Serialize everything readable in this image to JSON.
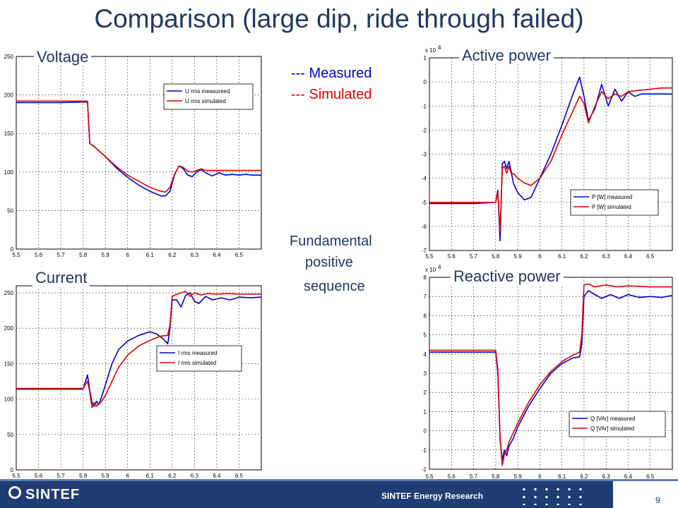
{
  "slide": {
    "title": "Comparison (large dip, ride through failed)",
    "legend_measured": "--- Measured",
    "legend_simulated": "--- Simulated",
    "note_line1": "Fundamental",
    "note_line2": "positive",
    "note_line3": "sequence",
    "footer_org": "SINTEF Energy Research",
    "logo_text": "SINTEF",
    "page_number": "9"
  },
  "colors": {
    "title": "#1f3864",
    "measured": "#0000cc",
    "simulated": "#dd0000",
    "footer": "#1f3c73"
  },
  "chart_data": [
    {
      "type": "line",
      "title": "Voltage",
      "xlim": [
        5.5,
        6.6
      ],
      "ylim": [
        0,
        250
      ],
      "xticks": [
        5.5,
        5.6,
        5.7,
        5.8,
        5.9,
        6,
        6.1,
        6.2,
        6.3,
        6.4,
        6.5
      ],
      "yticks": [
        0,
        50,
        100,
        150,
        200,
        250
      ],
      "ytick_labels": [
        "0",
        "50",
        "100",
        "150",
        "200",
        "250"
      ],
      "grid": true,
      "exponent_label": "",
      "legend": "upper-right",
      "series": [
        {
          "name": "U rms measureed",
          "color": "#0000cc",
          "x": [
            5.5,
            5.7,
            5.82,
            5.83,
            5.85,
            5.9,
            5.95,
            6.0,
            6.05,
            6.1,
            6.15,
            6.17,
            6.19,
            6.21,
            6.23,
            6.25,
            6.27,
            6.29,
            6.31,
            6.33,
            6.35,
            6.38,
            6.41,
            6.44,
            6.47,
            6.5,
            6.53,
            6.56,
            6.6
          ],
          "y": [
            190,
            190,
            191,
            137,
            133,
            120,
            105,
            93,
            83,
            75,
            69,
            69,
            75,
            96,
            108,
            104,
            96,
            94,
            100,
            103,
            99,
            95,
            99,
            96,
            97,
            96,
            97,
            96,
            96
          ]
        },
        {
          "name": "U rms simulated",
          "color": "#dd0000",
          "x": [
            5.5,
            5.7,
            5.82,
            5.83,
            5.85,
            5.9,
            5.95,
            6.0,
            6.05,
            6.1,
            6.15,
            6.17,
            6.19,
            6.21,
            6.23,
            6.25,
            6.27,
            6.29,
            6.31,
            6.33,
            6.35,
            6.38,
            6.45,
            6.5,
            6.6
          ],
          "y": [
            192,
            192,
            192,
            137,
            133,
            120,
            107,
            96,
            88,
            80,
            75,
            74,
            80,
            97,
            108,
            106,
            101,
            100,
            102,
            104,
            102,
            102,
            102,
            102,
            102
          ]
        }
      ]
    },
    {
      "type": "line",
      "title": "Current",
      "xlim": [
        5.5,
        6.6
      ],
      "ylim": [
        0,
        260
      ],
      "xticks": [
        5.5,
        5.6,
        5.7,
        5.8,
        5.9,
        6,
        6.1,
        6.2,
        6.3,
        6.4,
        6.5
      ],
      "yticks": [
        0,
        50,
        100,
        150,
        200,
        250
      ],
      "ytick_labels": [
        "0",
        "50",
        "100",
        "150",
        "200",
        "250"
      ],
      "grid": true,
      "exponent_label": "",
      "legend": "upper-right",
      "series": [
        {
          "name": "I rms measured",
          "color": "#0000cc",
          "x": [
            5.5,
            5.7,
            5.8,
            5.82,
            5.83,
            5.84,
            5.85,
            5.86,
            5.87,
            5.88,
            5.9,
            5.93,
            5.96,
            6.0,
            6.05,
            6.1,
            6.13,
            6.16,
            6.18,
            6.19,
            6.2,
            6.22,
            6.24,
            6.26,
            6.28,
            6.3,
            6.32,
            6.35,
            6.38,
            6.42,
            6.46,
            6.5,
            6.55,
            6.6
          ],
          "y": [
            114,
            114,
            114,
            134,
            112,
            95,
            90,
            97,
            92,
            100,
            120,
            150,
            170,
            182,
            190,
            195,
            192,
            185,
            178,
            200,
            240,
            240,
            230,
            246,
            250,
            238,
            235,
            245,
            240,
            243,
            240,
            244,
            243,
            244
          ]
        },
        {
          "name": "I rms simulated",
          "color": "#dd0000",
          "x": [
            5.5,
            5.7,
            5.8,
            5.82,
            5.83,
            5.84,
            5.85,
            5.86,
            5.87,
            5.88,
            5.9,
            5.93,
            5.96,
            6.0,
            6.05,
            6.1,
            6.15,
            6.18,
            6.19,
            6.2,
            6.22,
            6.24,
            6.26,
            6.28,
            6.3,
            6.33,
            6.36,
            6.4,
            6.45,
            6.5,
            6.6
          ],
          "y": [
            115,
            115,
            115,
            125,
            110,
            88,
            95,
            90,
            94,
            95,
            105,
            125,
            145,
            162,
            175,
            183,
            189,
            190,
            205,
            245,
            248,
            250,
            252,
            245,
            250,
            247,
            249,
            248,
            249,
            248,
            248
          ]
        }
      ]
    },
    {
      "type": "line",
      "title": "Active power",
      "xlim": [
        5.5,
        6.6
      ],
      "ylim": [
        -7,
        1
      ],
      "xticks": [
        5.5,
        5.6,
        5.7,
        5.8,
        5.9,
        6,
        6.1,
        6.2,
        6.3,
        6.4,
        6.5
      ],
      "yticks": [
        -7,
        -6,
        -5,
        -4,
        -3,
        -2,
        -1,
        0,
        1
      ],
      "ytick_labels": [
        "-7",
        "-6",
        "-5",
        "-4",
        "-3",
        "-2",
        "-1",
        "0",
        "1"
      ],
      "grid": true,
      "exponent_label": "x 10",
      "exponent_power": "4",
      "legend": "lower-right",
      "series": [
        {
          "name": "P [W] measured",
          "color": "#0000cc",
          "x": [
            5.5,
            5.7,
            5.8,
            5.81,
            5.82,
            5.83,
            5.84,
            5.85,
            5.86,
            5.87,
            5.88,
            5.9,
            5.93,
            5.96,
            6.0,
            6.05,
            6.1,
            6.15,
            6.18,
            6.2,
            6.22,
            6.25,
            6.28,
            6.31,
            6.34,
            6.37,
            6.4,
            6.43,
            6.46,
            6.5,
            6.55,
            6.6
          ],
          "y": [
            -5.05,
            -5.05,
            -5.0,
            -4.5,
            -6.6,
            -3.4,
            -3.3,
            -3.6,
            -3.3,
            -3.7,
            -4.2,
            -4.6,
            -4.9,
            -4.8,
            -4.0,
            -3.0,
            -1.8,
            -0.5,
            0.2,
            -0.6,
            -1.6,
            -1.1,
            -0.1,
            -1.0,
            -0.3,
            -0.8,
            -0.4,
            -0.6,
            -0.5,
            -0.5,
            -0.5,
            -0.5
          ]
        },
        {
          "name": "P [W] simulated",
          "color": "#dd0000",
          "x": [
            5.5,
            5.7,
            5.8,
            5.81,
            5.82,
            5.83,
            5.84,
            5.85,
            5.86,
            5.87,
            5.88,
            5.9,
            5.93,
            5.96,
            6.0,
            6.05,
            6.1,
            6.15,
            6.18,
            6.2,
            6.22,
            6.25,
            6.28,
            6.31,
            6.34,
            6.37,
            6.4,
            6.45,
            6.5,
            6.55,
            6.6
          ],
          "y": [
            -5.0,
            -5.0,
            -5.0,
            -4.6,
            -6.2,
            -3.6,
            -3.5,
            -3.8,
            -3.5,
            -3.8,
            -3.8,
            -4.0,
            -4.2,
            -4.3,
            -4.0,
            -3.3,
            -2.2,
            -1.2,
            -0.6,
            -0.9,
            -1.7,
            -1.0,
            -0.4,
            -0.7,
            -0.5,
            -0.6,
            -0.4,
            -0.35,
            -0.3,
            -0.25,
            -0.25
          ]
        }
      ]
    },
    {
      "type": "line",
      "title": "Reactive power",
      "xlim": [
        5.5,
        6.6
      ],
      "ylim": [
        -2,
        8
      ],
      "xticks": [
        5.5,
        5.6,
        5.7,
        5.8,
        5.9,
        6,
        6.1,
        6.2,
        6.3,
        6.4,
        6.5
      ],
      "yticks": [
        -2,
        -1,
        0,
        1,
        2,
        3,
        4,
        5,
        6,
        7,
        8
      ],
      "ytick_labels": [
        "-2",
        "-1",
        "0",
        "1",
        "2",
        "3",
        "4",
        "5",
        "6",
        "7",
        "8"
      ],
      "grid": true,
      "exponent_label": "x 10",
      "exponent_power": "4",
      "legend": "lower-right",
      "series": [
        {
          "name": "Q [VAr] measured",
          "color": "#0000cc",
          "x": [
            5.5,
            5.7,
            5.8,
            5.81,
            5.82,
            5.83,
            5.84,
            5.85,
            5.86,
            5.88,
            5.9,
            5.95,
            6.0,
            6.05,
            6.1,
            6.15,
            6.18,
            6.19,
            6.2,
            6.22,
            6.25,
            6.28,
            6.32,
            6.36,
            6.4,
            6.45,
            6.5,
            6.55,
            6.6
          ],
          "y": [
            4.1,
            4.1,
            4.1,
            3.0,
            -0.5,
            -1.5,
            -1.0,
            -1.3,
            -0.8,
            -0.4,
            0.2,
            1.3,
            2.2,
            3.0,
            3.5,
            3.8,
            3.85,
            4.5,
            7.0,
            7.3,
            7.1,
            6.9,
            7.1,
            6.9,
            7.1,
            6.95,
            7.0,
            6.95,
            7.05
          ]
        },
        {
          "name": "Q [VAr] simulated",
          "color": "#dd0000",
          "x": [
            5.5,
            5.7,
            5.8,
            5.81,
            5.82,
            5.83,
            5.84,
            5.85,
            5.86,
            5.88,
            5.9,
            5.95,
            6.0,
            6.05,
            6.1,
            6.15,
            6.18,
            6.19,
            6.2,
            6.22,
            6.25,
            6.3,
            6.35,
            6.4,
            6.5,
            6.6
          ],
          "y": [
            4.2,
            4.2,
            4.2,
            3.2,
            -0.3,
            -1.8,
            -1.2,
            -1.0,
            -0.6,
            -0.1,
            0.4,
            1.5,
            2.4,
            3.1,
            3.6,
            3.95,
            4.1,
            5.0,
            7.6,
            7.65,
            7.5,
            7.6,
            7.5,
            7.55,
            7.5,
            7.5
          ]
        }
      ]
    }
  ]
}
